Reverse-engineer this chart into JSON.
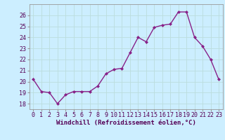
{
  "x": [
    0,
    1,
    2,
    3,
    4,
    5,
    6,
    7,
    8,
    9,
    10,
    11,
    12,
    13,
    14,
    15,
    16,
    17,
    18,
    19,
    20,
    21,
    22,
    23
  ],
  "y": [
    20.2,
    19.1,
    19.0,
    18.0,
    18.8,
    19.1,
    19.1,
    19.1,
    19.6,
    20.7,
    21.1,
    21.2,
    22.6,
    24.0,
    23.6,
    24.9,
    25.1,
    25.2,
    26.3,
    26.3,
    24.0,
    23.2,
    22.0,
    20.2
  ],
  "line_color": "#882288",
  "marker": "D",
  "marker_size": 2.0,
  "line_width": 1.0,
  "xlabel": "Windchill (Refroidissement éolien,°C)",
  "xlabel_fontsize": 6.5,
  "ylim": [
    17.5,
    27.0
  ],
  "xlim": [
    -0.5,
    23.5
  ],
  "yticks": [
    18,
    19,
    20,
    21,
    22,
    23,
    24,
    25,
    26
  ],
  "xticks": [
    0,
    1,
    2,
    3,
    4,
    5,
    6,
    7,
    8,
    9,
    10,
    11,
    12,
    13,
    14,
    15,
    16,
    17,
    18,
    19,
    20,
    21,
    22,
    23
  ],
  "tick_fontsize": 6.0,
  "background_color": "#cceeff",
  "grid_color": "#bbdddd",
  "spine_color": "#999999"
}
